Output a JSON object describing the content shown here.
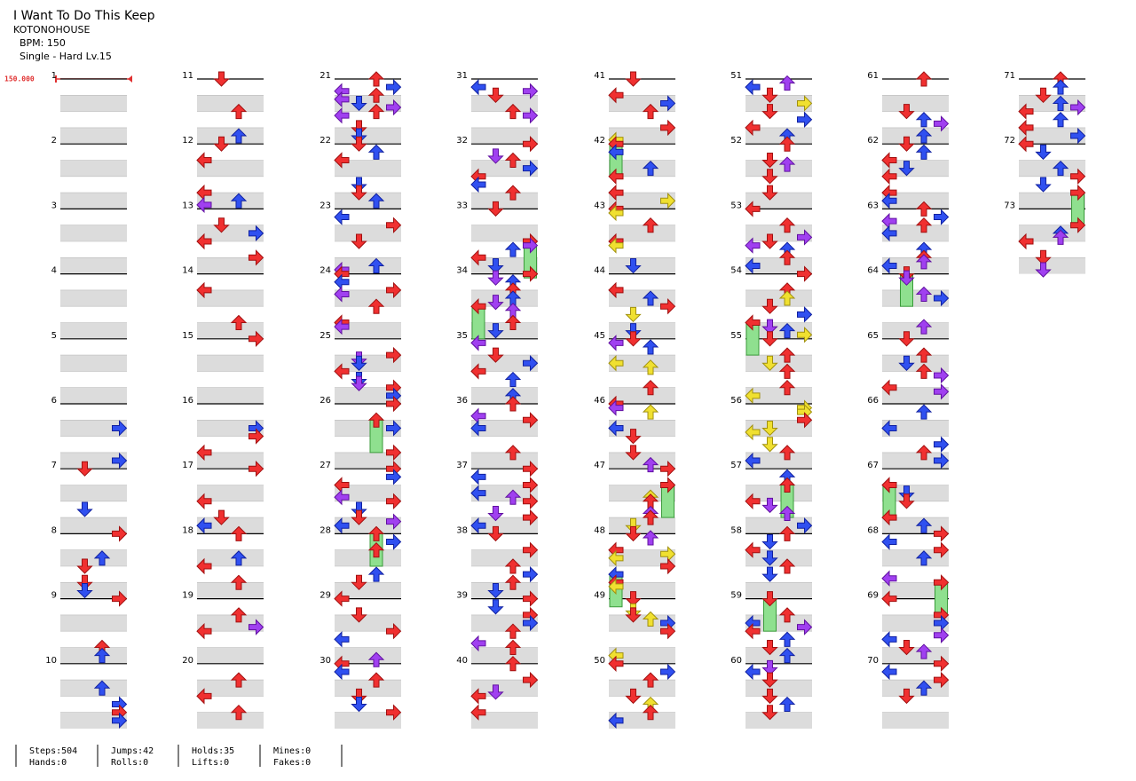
{
  "header": {
    "title": "I Want To Do This Keep",
    "artist": "KOTONOHOUSE",
    "bpm": "BPM: 150",
    "difficulty": "Single - Hard  Lv.15"
  },
  "bpm_marker": "150.000",
  "measures": [
    "1",
    "2",
    "3",
    "4",
    "5",
    "6",
    "7",
    "8",
    "9",
    "10",
    "11",
    "12",
    "13",
    "14",
    "15",
    "16",
    "17",
    "18",
    "19",
    "20",
    "21",
    "22",
    "23",
    "24",
    "25",
    "26",
    "27",
    "28",
    "29",
    "30",
    "31",
    "32",
    "33",
    "34",
    "35",
    "36",
    "37",
    "38",
    "39",
    "40",
    "41",
    "42",
    "43",
    "44",
    "45",
    "46",
    "47",
    "48",
    "49",
    "50",
    "51",
    "52",
    "53",
    "54",
    "55",
    "56",
    "57",
    "58",
    "59",
    "60",
    "61",
    "62",
    "63",
    "64",
    "65",
    "66",
    "67",
    "68",
    "69",
    "70",
    "71",
    "72",
    "73"
  ],
  "stats": [
    [
      "Steps:504",
      "Hands:0"
    ],
    [
      "Jumps:42",
      "Rolls:0"
    ],
    [
      "Holds:35",
      "Lifts:0"
    ],
    [
      "Mines:0",
      "Fakes:0"
    ]
  ]
}
